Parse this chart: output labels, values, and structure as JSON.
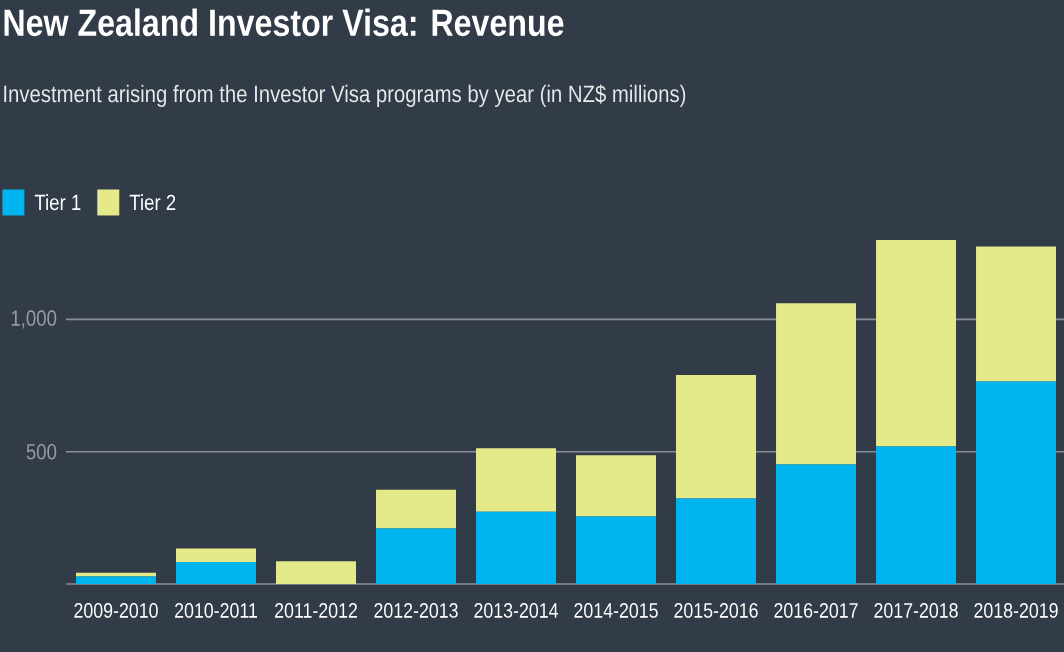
{
  "chart_data": {
    "type": "bar",
    "stacked": true,
    "title": "New Zealand Investor Visa: Revenue",
    "subtitle": "Investment arising from the Investor Visa programs by year (in NZ$ millions)",
    "categories": [
      "2009-2010",
      "2010-2011",
      "2011-2012",
      "2012-2013",
      "2013-2014",
      "2014-2015",
      "2015-2016",
      "2016-2017",
      "2017-2018",
      "2018-2019"
    ],
    "series": [
      {
        "name": "Tier 1",
        "color": "#00b4f0",
        "values": [
          28,
          83,
          0,
          210,
          273,
          255,
          323,
          452,
          520,
          765
        ]
      },
      {
        "name": "Tier 2",
        "color": "#e4e98a",
        "values": [
          15,
          51,
          86,
          146,
          240,
          232,
          467,
          609,
          780,
          510
        ]
      }
    ],
    "ylim": [
      0,
      1300
    ],
    "yticks": [
      {
        "value": 500,
        "label": "500"
      },
      {
        "value": 1000,
        "label": "1,000"
      }
    ],
    "grid": "y",
    "legend": "top left"
  }
}
